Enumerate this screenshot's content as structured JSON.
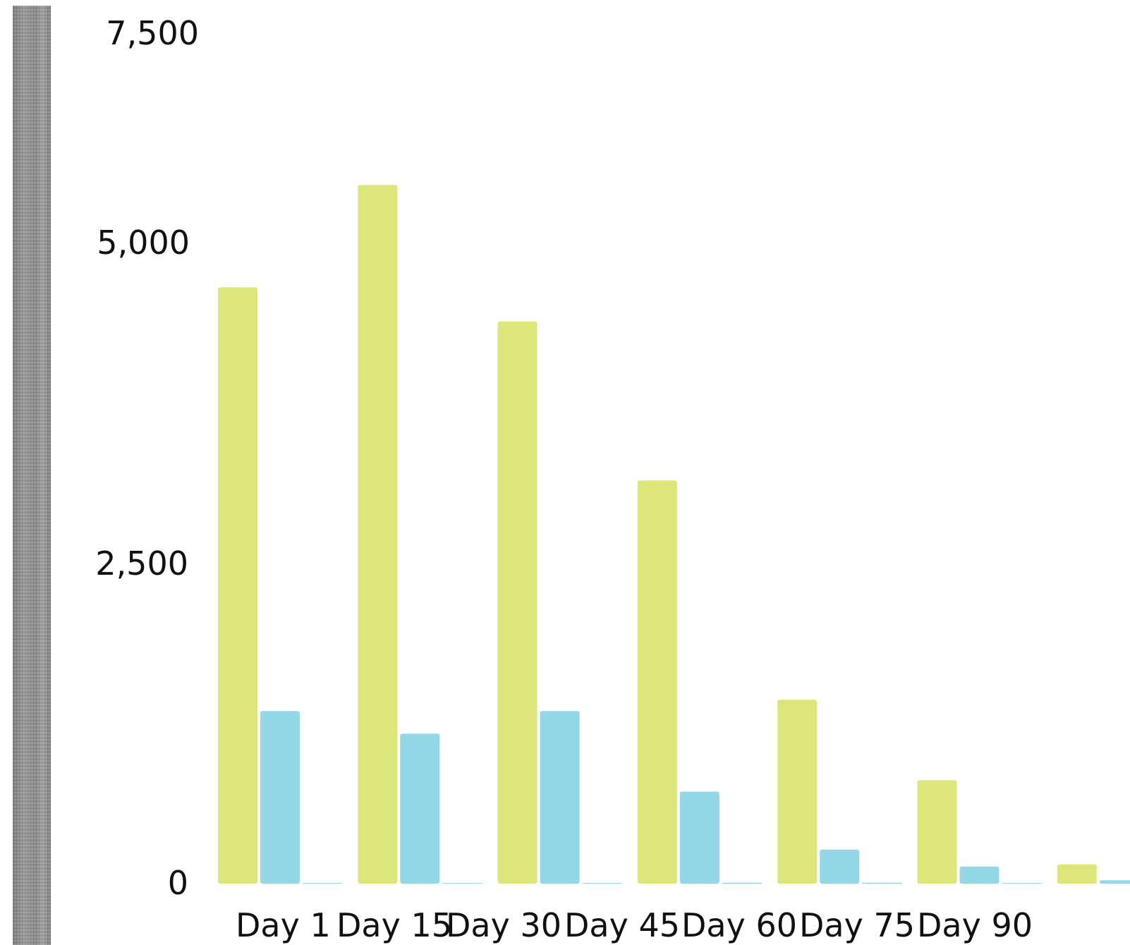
{
  "chart_data": {
    "type": "bar",
    "title": "",
    "xlabel": "",
    "ylabel": "",
    "categories": [
      "Day 1",
      "Day 15",
      "Day 30",
      "Day 45",
      "Day 60",
      "Day 75",
      "Day 90"
    ],
    "y_tick_labels": [
      "0",
      "2,500",
      "5,000",
      "7,500"
    ],
    "y_ticks": [
      0,
      2500,
      5000,
      7500
    ],
    "ylim": [
      0,
      7500
    ],
    "grid": false,
    "legend": "none",
    "series": [
      {
        "color": "#dde67a",
        "values": [
          5250,
          6150,
          4950,
          3550,
          1620,
          910,
          170
        ]
      },
      {
        "color": "#94d7e6",
        "values": [
          1520,
          1320,
          1520,
          810,
          300,
          150,
          30
        ]
      },
      {
        "color": "#94d7e6",
        "values": [
          5,
          5,
          5,
          8,
          8,
          0,
          0
        ]
      }
    ]
  }
}
